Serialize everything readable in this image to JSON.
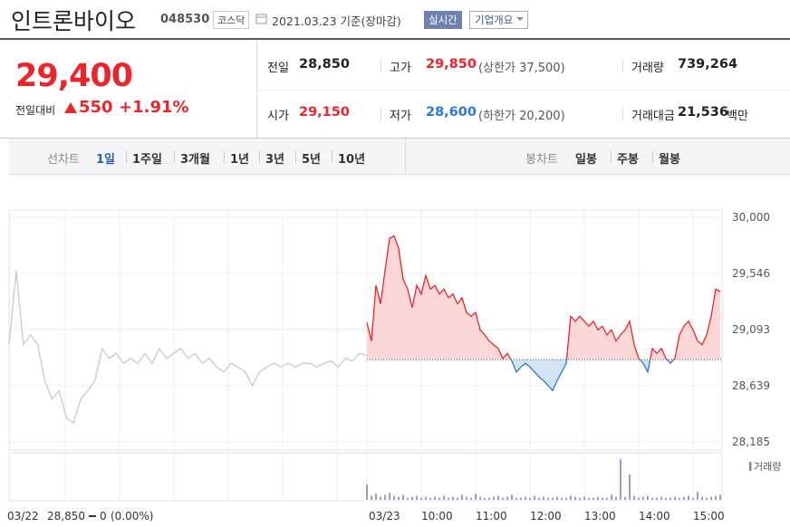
{
  "header": {
    "name": "인트론바이오",
    "code": "048530",
    "market": "코스닥",
    "date": "2021.03.23 기준(장마감)",
    "realtime": "실시간",
    "company": "기업개요"
  },
  "quote": {
    "price": "29,400",
    "change_label": "전일대비",
    "change": "550",
    "rate": "+1.91%"
  },
  "stats": [
    {
      "label": "전일",
      "value": "28,850",
      "color": "#222222"
    },
    {
      "label": "고가",
      "value": "29,850",
      "note": "(상한가 37,500)",
      "color": "#e8262b"
    },
    {
      "label": "거래량",
      "value": "739,264",
      "color": "#222222"
    },
    {
      "label": "시가",
      "value": "29,150",
      "color": "#e8262b"
    },
    {
      "label": "저가",
      "value": "28,600",
      "note": "(하한가 20,200)",
      "color": "#2c78d4"
    },
    {
      "label": "거래대금",
      "value": "21,536",
      "unit": "백만",
      "color": "#222222"
    }
  ],
  "tabs": {
    "line_label": "선차트",
    "line": [
      "1일",
      "1주일",
      "3개월",
      "1년",
      "3년",
      "5년",
      "10년"
    ],
    "selected": 0,
    "candle_label": "봉차트",
    "candle": [
      "일봉",
      "주봉",
      "월봉"
    ]
  },
  "chart": {
    "type": "line",
    "ylim": [
      28185,
      30000
    ],
    "yticks": [
      {
        "value": 30000,
        "label": "30,000"
      },
      {
        "value": 29546,
        "label": "29,546"
      },
      {
        "value": 29093,
        "label": "29,093"
      },
      {
        "value": 28639,
        "label": "28,639"
      },
      {
        "value": 28185,
        "label": "28,185"
      }
    ],
    "baseline": 28850,
    "prev_values": [
      28970,
      29570,
      28970,
      29050,
      28970,
      28680,
      28530,
      28600,
      28380,
      28340,
      28530,
      28600,
      28680,
      28940,
      28860,
      28900,
      28820,
      28860,
      28820,
      28900,
      28820,
      28940,
      28860,
      28900,
      28940,
      28860,
      28900,
      28820,
      28860,
      28790,
      28750,
      28820,
      28790,
      28750,
      28640,
      28750,
      28790,
      28820,
      28790,
      28820,
      28790,
      28820,
      28820,
      28790,
      28820,
      28840,
      28790,
      28860,
      28840,
      28900,
      28880
    ],
    "values": [
      29150,
      29000,
      29450,
      29300,
      29570,
      29830,
      29850,
      29750,
      29500,
      29420,
      29270,
      29450,
      29380,
      29530,
      29420,
      29450,
      29380,
      29420,
      29350,
      29380,
      29300,
      29350,
      29230,
      29200,
      29230,
      29090,
      29050,
      29000,
      28970,
      28940,
      28860,
      28900,
      28840,
      28750,
      28790,
      28820,
      28790,
      28750,
      28710,
      28680,
      28640,
      28600,
      28680,
      28750,
      28820,
      29200,
      29160,
      29200,
      29160,
      29120,
      29160,
      29090,
      29120,
      29050,
      29090,
      29000,
      29050,
      29090,
      29160,
      28970,
      28860,
      28820,
      28750,
      28940,
      28900,
      28940,
      28860,
      28820,
      28860,
      29050,
      29120,
      29160,
      29090,
      29000,
      28970,
      29050,
      29200,
      29420,
      29400
    ],
    "volume": [
      15000,
      4000,
      6000,
      3000,
      5000,
      7000,
      4000,
      3000,
      5000,
      2000,
      3000,
      4000,
      2000,
      3000,
      2000,
      3000,
      2000,
      4000,
      2000,
      3000,
      2000,
      5000,
      3000,
      2000,
      6000,
      3000,
      2000,
      2000,
      3000,
      4000,
      2000,
      3000,
      5000,
      2000,
      2000,
      3000,
      2000,
      4000,
      2000,
      3000,
      2000,
      2000,
      3000,
      2000,
      2000,
      4000,
      3000,
      2000,
      3000,
      2000,
      2000,
      3000,
      2000,
      2000,
      5000,
      3000,
      40000,
      3000,
      25000,
      4000,
      2000,
      3000,
      4000,
      2000,
      2000,
      3000,
      2000,
      2000,
      3000,
      2000,
      3000,
      4000,
      2000,
      8000,
      3000,
      2000,
      3000,
      4000,
      5000
    ],
    "volume_label": "거래량",
    "x_labels": [
      "03/23",
      "10:00",
      "11:00",
      "12:00",
      "13:00",
      "14:00",
      "15:00"
    ],
    "colors": {
      "up": "#e8262b",
      "up_fill": "#fbd7d8",
      "down": "#2c78d4",
      "down_fill": "#d3e4f7",
      "prev": "#c9c9c9",
      "volume": "#8e7cc3"
    },
    "footer": {
      "date": "03/22",
      "close": "28,850",
      "change": "0",
      "rate": "(0.00%)"
    }
  }
}
